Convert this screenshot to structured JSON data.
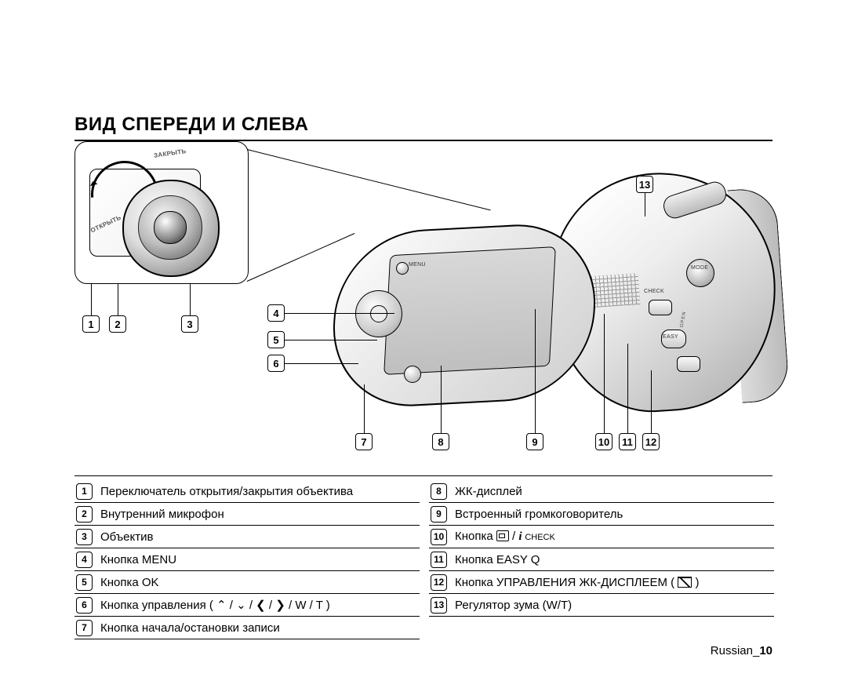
{
  "title": "ВИД СПЕРЕДИ И СЛЕВА",
  "inset": {
    "label_close": "ЗАКРЫТЬ",
    "label_open": "ОТКРЫТЬ"
  },
  "callouts": {
    "1": "1",
    "2": "2",
    "3": "3",
    "4": "4",
    "5": "5",
    "6": "6",
    "7": "7",
    "8": "8",
    "9": "9",
    "10": "10",
    "11": "11",
    "12": "12",
    "13": "13"
  },
  "body_labels": {
    "menu": "MENU",
    "check": "CHECK",
    "easy": "EASY",
    "mode": "MODE",
    "open": "OPEN"
  },
  "legend_left": [
    {
      "n": "1",
      "t": "Переключатель открытия/закрытия объектива"
    },
    {
      "n": "2",
      "t": "Внутренний микрофон"
    },
    {
      "n": "3",
      "t": "Объектив"
    },
    {
      "n": "4",
      "t": "Кнопка MENU"
    },
    {
      "n": "5",
      "t": "Кнопка OK"
    },
    {
      "n": "6",
      "t": "Кнопка управления ( ⌃ / ⌄ / ❮ / ❯ / W / T )"
    },
    {
      "n": "7",
      "t": "Кнопка начала/остановки записи"
    }
  ],
  "legend_right": [
    {
      "n": "8",
      "t": "ЖК-дисплей"
    },
    {
      "n": "9",
      "t": "Встроенный громкоговоритель"
    },
    {
      "n": "10",
      "t": "Кнопка ",
      "icons": "info_check"
    },
    {
      "n": "11",
      "t": "Кнопка EASY Q"
    },
    {
      "n": "12",
      "t": "Кнопка УПРАВЛЕНИЯ ЖК-ДИСПЛЕЕМ ( ",
      "icons": "lcd"
    },
    {
      "n": "13",
      "t": "Регулятор зума (W/T)"
    }
  ],
  "info_check_text": "CHECK",
  "footer": {
    "lang": "Russian_",
    "page": "10"
  },
  "colors": {
    "text": "#000000",
    "bg": "#ffffff",
    "rule": "#000000"
  }
}
